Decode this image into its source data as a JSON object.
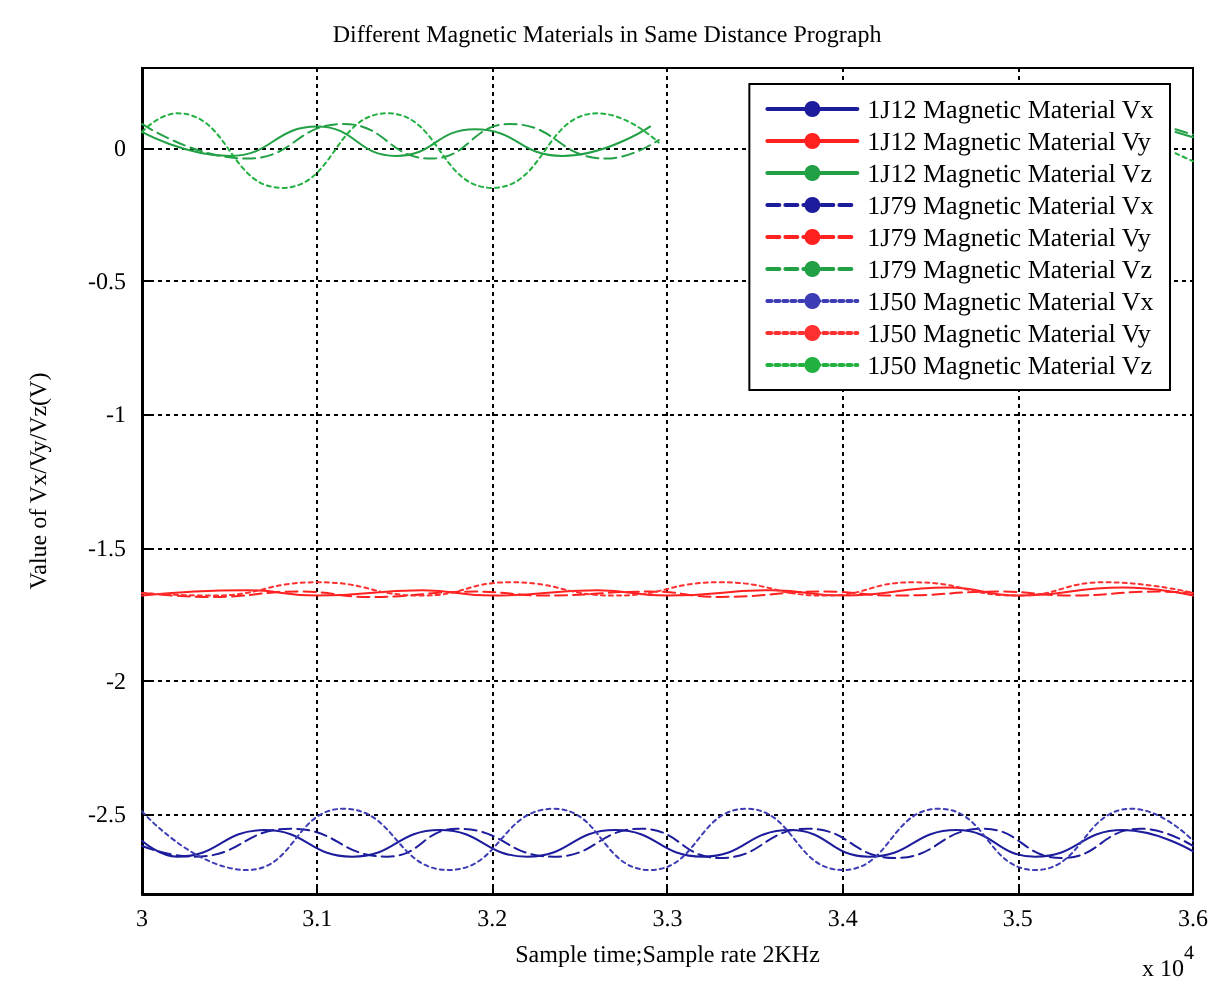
{
  "chart_data": {
    "type": "line",
    "title": "Different Magnetic Materials in Same Distance Prograph",
    "xlabel": "Sample time;Sample rate 2KHz",
    "ylabel": "Value of Vx/Vy/Vz(V)",
    "annotations": [
      "x 10$^{4}$"
    ],
    "xlim": [
      3,
      3.6
    ],
    "xticks": [
      3,
      3.1,
      3.2,
      3.3,
      3.4,
      3.5,
      3.6
    ],
    "ylim": [
      -2.8,
      0.3
    ],
    "yticks": [
      0,
      -0.5,
      -1,
      -1.5,
      -2,
      -2.5
    ],
    "grid": true,
    "legend": "top right",
    "marker": "none",
    "series": [
      {
        "name": "1J12 Magnetic Material Vx",
        "color": "#1c1c9c",
        "line_style": "solid",
        "x": [
          3.0,
          3.02,
          3.07,
          3.12,
          3.17,
          3.22,
          3.27,
          3.32,
          3.37,
          3.415,
          3.465,
          3.51,
          3.56,
          3.6
        ],
        "values": [
          -2.6,
          -2.66,
          -2.56,
          -2.66,
          -2.56,
          -2.66,
          -2.56,
          -2.66,
          -2.56,
          -2.66,
          -2.56,
          -2.66,
          -2.56,
          -2.64
        ]
      },
      {
        "name": "1J12 Magnetic Material Vy",
        "color": "#ff2020",
        "line_style": "solid",
        "x": [
          3.0,
          3.06,
          3.1,
          3.16,
          3.2,
          3.26,
          3.3,
          3.36,
          3.4,
          3.46,
          3.5,
          3.56,
          3.6
        ],
        "values": [
          -1.68,
          -1.66,
          -1.68,
          -1.66,
          -1.68,
          -1.66,
          -1.68,
          -1.66,
          -1.68,
          -1.65,
          -1.68,
          -1.65,
          -1.68
        ]
      },
      {
        "name": "1J12 Magnetic Material Vz",
        "color": "#22a045",
        "line_style": "solid",
        "x": [
          3.0,
          3.05,
          3.1,
          3.145,
          3.19,
          3.24,
          3.29,
          3.45,
          3.59,
          3.6
        ],
        "values": [
          0.06,
          -0.03,
          0.08,
          -0.03,
          0.07,
          -0.03,
          0.08,
          null,
          0.06,
          0.04
        ]
      },
      {
        "name": "1J79 Magnetic Material Vx",
        "color": "#1c1c9c",
        "line_style": "dashed",
        "x": [
          3.0,
          3.03,
          3.085,
          3.14,
          3.18,
          3.235,
          3.285,
          3.33,
          3.38,
          3.43,
          3.48,
          3.525,
          3.57,
          3.6
        ],
        "values": [
          -2.62,
          -2.66,
          -2.555,
          -2.66,
          -2.555,
          -2.66,
          -2.555,
          -2.665,
          -2.555,
          -2.665,
          -2.555,
          -2.665,
          -2.555,
          -2.62
        ]
      },
      {
        "name": "1J79 Magnetic Material Vy",
        "color": "#ff2020",
        "line_style": "dashed",
        "x": [
          3.0,
          3.04,
          3.09,
          3.13,
          3.19,
          3.23,
          3.29,
          3.33,
          3.39,
          3.43,
          3.49,
          3.53,
          3.58,
          3.6
        ],
        "values": [
          -1.67,
          -1.685,
          -1.665,
          -1.685,
          -1.665,
          -1.68,
          -1.665,
          -1.685,
          -1.665,
          -1.68,
          -1.665,
          -1.68,
          -1.665,
          -1.67
        ]
      },
      {
        "name": "1J79 Magnetic Material Vz",
        "color": "#22a045",
        "line_style": "dashed",
        "x": [
          3.0,
          3.06,
          3.115,
          3.165,
          3.21,
          3.265,
          3.295,
          3.45,
          3.59,
          3.6
        ],
        "values": [
          0.09,
          -0.04,
          0.09,
          -0.04,
          0.09,
          -0.04,
          0.03,
          null,
          0.07,
          0.05
        ]
      },
      {
        "name": "1J50 Magnetic Material Vx",
        "color": "#3c3cb4",
        "line_style": "dotted",
        "x": [
          3.0,
          3.06,
          3.115,
          3.175,
          3.235,
          3.29,
          3.345,
          3.4,
          3.455,
          3.51,
          3.565,
          3.6
        ],
        "values": [
          -2.49,
          -2.71,
          -2.48,
          -2.71,
          -2.48,
          -2.71,
          -2.48,
          -2.71,
          -2.48,
          -2.71,
          -2.48,
          -2.6
        ]
      },
      {
        "name": "1J50 Magnetic Material Vy",
        "color": "#ff3030",
        "line_style": "dotted",
        "x": [
          3.0,
          3.04,
          3.1,
          3.16,
          3.21,
          3.27,
          3.33,
          3.39,
          3.44,
          3.5,
          3.55,
          3.6
        ],
        "values": [
          -1.67,
          -1.68,
          -1.63,
          -1.68,
          -1.63,
          -1.68,
          -1.63,
          -1.68,
          -1.63,
          -1.68,
          -1.63,
          -1.67
        ]
      },
      {
        "name": "1J50 Magnetic Material Vz",
        "color": "#22b040",
        "line_style": "dotted",
        "x": [
          3.0,
          3.02,
          3.08,
          3.14,
          3.2,
          3.26,
          3.295,
          3.45,
          3.59,
          3.6
        ],
        "values": [
          0.06,
          0.13,
          -0.15,
          0.13,
          -0.15,
          0.13,
          0.02,
          null,
          -0.02,
          -0.05
        ]
      }
    ]
  }
}
